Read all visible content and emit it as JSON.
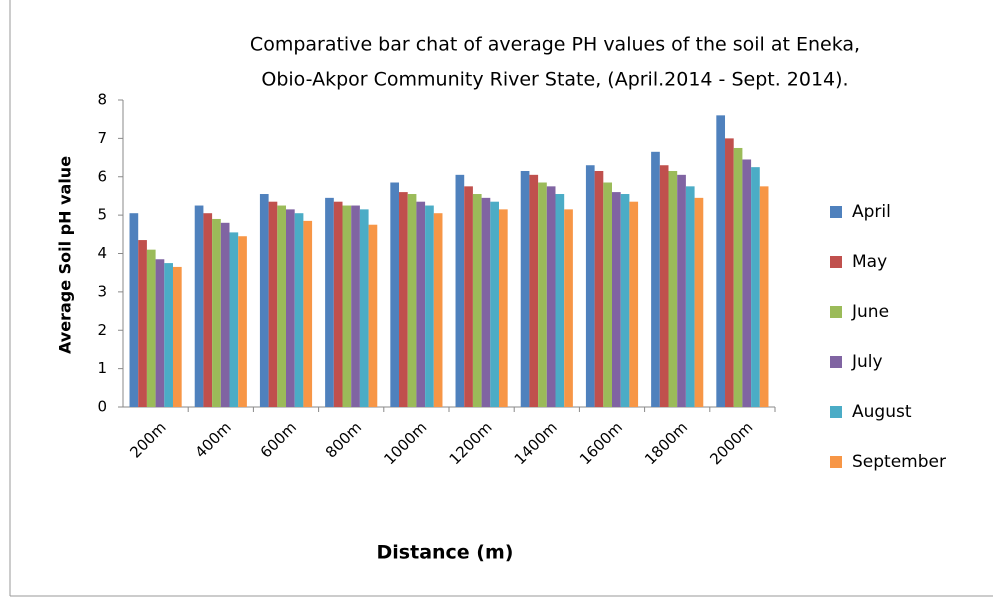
{
  "chart_data": {
    "type": "bar",
    "title": [
      "Comparative bar chat of average PH values of the soil at Eneka,",
      "Obio-Akpor Community River State, (April.2014 - Sept. 2014)."
    ],
    "xlabel": "Distance (m)",
    "ylabel": "Average Soil   pH value",
    "categories": [
      "200m",
      "400m",
      "600m",
      "800m",
      "1000m",
      "1200m",
      "1400m",
      "1600m",
      "1800m",
      "2000m"
    ],
    "series": [
      {
        "name": "April",
        "color": "#4f81bd",
        "values": [
          5.05,
          5.25,
          5.55,
          5.45,
          5.85,
          6.05,
          6.15,
          6.3,
          6.65,
          7.6
        ]
      },
      {
        "name": "May",
        "color": "#c0504d",
        "values": [
          4.35,
          5.05,
          5.35,
          5.35,
          5.6,
          5.75,
          6.05,
          6.15,
          6.3,
          7.0
        ]
      },
      {
        "name": "June",
        "color": "#9bbb59",
        "values": [
          4.1,
          4.9,
          5.25,
          5.25,
          5.55,
          5.55,
          5.85,
          5.85,
          6.15,
          6.75
        ]
      },
      {
        "name": "July",
        "color": "#8064a2",
        "values": [
          3.85,
          4.8,
          5.15,
          5.25,
          5.35,
          5.45,
          5.75,
          5.6,
          6.05,
          6.45
        ]
      },
      {
        "name": "August",
        "color": "#4bacc6",
        "values": [
          3.75,
          4.55,
          5.05,
          5.15,
          5.25,
          5.35,
          5.55,
          5.55,
          5.75,
          6.25
        ]
      },
      {
        "name": "September",
        "color": "#f79646",
        "values": [
          3.65,
          4.45,
          4.85,
          4.75,
          5.05,
          5.15,
          5.15,
          5.35,
          5.45,
          5.75
        ]
      }
    ],
    "ylim": [
      0,
      8
    ],
    "yticks": [
      0,
      1,
      2,
      3,
      4,
      5,
      6,
      7,
      8
    ],
    "grid": false,
    "legend": "right"
  }
}
